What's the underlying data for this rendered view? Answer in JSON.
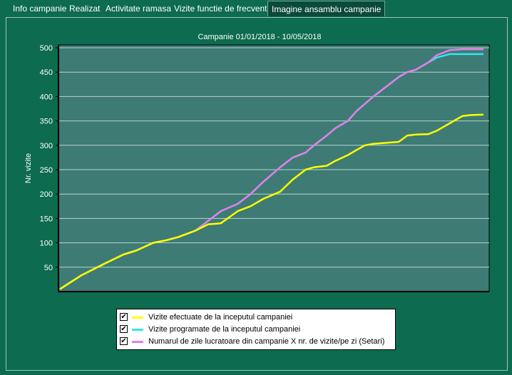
{
  "tabs": [
    {
      "label": "Info campanie",
      "active": false
    },
    {
      "label": "Realizat",
      "active": false
    },
    {
      "label": "Activitate ramasa",
      "active": false
    },
    {
      "label": "Vizite functie de frecventa",
      "active": false
    },
    {
      "label": "Imagine ansamblu campanie",
      "active": true
    }
  ],
  "colors": {
    "background": "#0d6b4f",
    "plot_area": "#3d7b74",
    "series_efectuate": "#ffff00",
    "series_programate": "#33e6f0",
    "series_lucratoare": "#e27ee8"
  },
  "legend": {
    "items": [
      {
        "label": "Vizite efectuate de la inceputul campaniei",
        "checked": true,
        "check_glyph": "✔"
      },
      {
        "label": "Vizite programate de la inceputul campaniei",
        "checked": true,
        "check_glyph": "✔"
      },
      {
        "label": "Numarul de zile lucratoare din campanie X nr. de vizite/pe zi  (Setari)",
        "checked": true,
        "check_glyph": "✔"
      }
    ]
  },
  "chart_data": {
    "type": "line",
    "title": "Campanie 01/01/2018 - 10/05/2018",
    "xlabel": "",
    "ylabel": "Nr. vizite",
    "ylim": [
      0,
      500
    ],
    "yticks": [
      50,
      100,
      150,
      200,
      250,
      300,
      350,
      400,
      450,
      500
    ],
    "grid": true,
    "x_axis_labels": false,
    "series": [
      {
        "name": "Vizite efectuate de la inceputul campaniei",
        "color": "#ffff00",
        "x": [
          0,
          5,
          10,
          15,
          18,
          22,
          25,
          28,
          32,
          35,
          38,
          42,
          45,
          48,
          52,
          55,
          58,
          60,
          63,
          65,
          68,
          70,
          72,
          74,
          77,
          80,
          82,
          84,
          87,
          89,
          92,
          95,
          97,
          100
        ],
        "y": [
          5,
          33,
          55,
          76,
          84,
          100,
          105,
          112,
          125,
          138,
          140,
          165,
          175,
          190,
          205,
          230,
          250,
          255,
          258,
          268,
          280,
          290,
          300,
          303,
          305,
          307,
          320,
          322,
          323,
          330,
          345,
          360,
          362,
          363
        ]
      },
      {
        "name": "Vizite programate de la inceputul campaniei",
        "color": "#33e6f0",
        "x": [
          0,
          5,
          10,
          15,
          18,
          22,
          25,
          28,
          32,
          35,
          38,
          42,
          45,
          48,
          52,
          55,
          58,
          60,
          63,
          65,
          68,
          70,
          72,
          74,
          77,
          80,
          82,
          84,
          87,
          89,
          92,
          95,
          97,
          100
        ],
        "y": [
          5,
          33,
          55,
          76,
          84,
          100,
          105,
          112,
          125,
          145,
          165,
          180,
          200,
          225,
          255,
          275,
          285,
          300,
          320,
          335,
          350,
          370,
          385,
          400,
          420,
          440,
          450,
          455,
          470,
          480,
          487,
          487,
          487,
          487
        ]
      },
      {
        "name": "Numarul de zile lucratoare din campanie X nr. de vizite/pe zi  (Setari)",
        "color": "#e27ee8",
        "x": [
          0,
          5,
          10,
          15,
          18,
          22,
          25,
          28,
          32,
          35,
          38,
          42,
          45,
          48,
          52,
          55,
          58,
          60,
          63,
          65,
          68,
          70,
          72,
          74,
          77,
          80,
          82,
          84,
          87,
          89,
          92,
          95,
          97,
          100
        ],
        "y": [
          5,
          33,
          55,
          76,
          84,
          100,
          105,
          112,
          125,
          145,
          165,
          180,
          200,
          225,
          255,
          275,
          285,
          300,
          320,
          335,
          350,
          370,
          385,
          400,
          420,
          440,
          450,
          455,
          470,
          485,
          495,
          497,
          497,
          497
        ]
      }
    ]
  }
}
